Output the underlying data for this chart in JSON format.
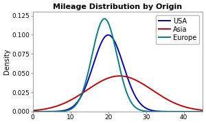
{
  "title": "Mileage Distribution by Origin",
  "ylabel": "Density",
  "xlabel": "",
  "xlim": [
    0,
    45
  ],
  "ylim": [
    0,
    0.13
  ],
  "yticks": [
    0.0,
    0.025,
    0.05,
    0.075,
    0.1,
    0.125
  ],
  "xticks": [
    0,
    10,
    20,
    30,
    40
  ],
  "series": [
    {
      "label": "USA",
      "color": "#0000cc",
      "mean": 20.0,
      "std": 4.0
    },
    {
      "label": "Asia",
      "color": "#cc0000",
      "mean": 23.0,
      "std": 8.6
    },
    {
      "label": "Europe",
      "color": "#008080",
      "mean": 19.0,
      "std": 3.3
    }
  ],
  "background_color": "#ffffff",
  "plot_bg_color": "#ffffff",
  "title_fontsize": 8,
  "axis_fontsize": 7,
  "tick_fontsize": 6.5,
  "legend_fontsize": 7,
  "linewidth": 1.4
}
